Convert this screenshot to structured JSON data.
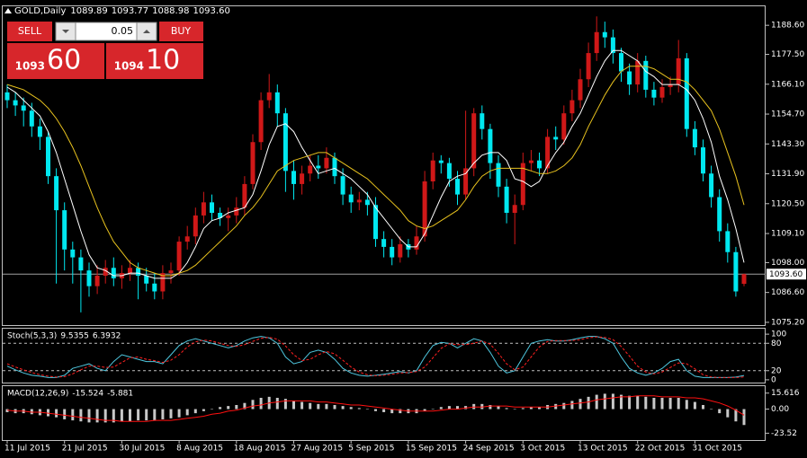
{
  "trade_panel": {
    "sell": "SELL",
    "buy": "BUY",
    "lot": "0.05",
    "sell_big": "1093",
    "sell_small": "60",
    "buy_big": "1094",
    "buy_small": "10"
  },
  "chart_data": [
    {
      "type": "candlestick",
      "title": "GOLD,Daily",
      "header_labels": [
        "1089.89",
        "1093.77",
        "1088.98",
        "1093.60"
      ],
      "categories": [
        "11 Jul 2015",
        null,
        null,
        null,
        null,
        null,
        null,
        "21 Jul 2015",
        null,
        null,
        null,
        null,
        null,
        null,
        "30 Jul 2015",
        null,
        null,
        null,
        null,
        null,
        null,
        "8 Aug 2015",
        null,
        null,
        null,
        null,
        null,
        null,
        "18 Aug 2015",
        null,
        null,
        null,
        null,
        null,
        null,
        "27 Aug 2015",
        null,
        null,
        null,
        null,
        null,
        null,
        "5 Sep 2015",
        null,
        null,
        null,
        null,
        null,
        null,
        "15 Sep 2015",
        null,
        null,
        null,
        null,
        null,
        null,
        "24 Sep 2015",
        null,
        null,
        null,
        null,
        null,
        null,
        "3 Oct 2015",
        null,
        null,
        null,
        null,
        null,
        null,
        "13 Oct 2015",
        null,
        null,
        null,
        null,
        null,
        null,
        "22 Oct 2015",
        null,
        null,
        null,
        null,
        null,
        null,
        "31 Oct 2015",
        null,
        null,
        null,
        null,
        null,
        null
      ],
      "open": [
        1163,
        1160,
        1158,
        1156,
        1150,
        1146,
        1131,
        1118,
        1103,
        1100,
        1095,
        1089,
        1093,
        1096,
        1092,
        1094,
        1096,
        1093,
        1090,
        1087,
        1094,
        1095,
        1106,
        1108,
        1116,
        1121,
        1117,
        1115,
        1116,
        1119,
        1128,
        1144,
        1160,
        1163,
        1155,
        1133,
        1128,
        1132,
        1135,
        1134,
        1138,
        1131,
        1124,
        1121,
        1122,
        1120,
        1107,
        1104,
        1100,
        1105,
        1103,
        1108,
        1129,
        1137,
        1136,
        1130,
        1124,
        1134,
        1155,
        1149,
        1136,
        1127,
        1117,
        1120,
        1136,
        1137,
        1134,
        1146,
        1145,
        1155,
        1160,
        1168,
        1178,
        1186,
        1184,
        1178,
        1171,
        1166,
        1175,
        1164,
        1161,
        1165,
        1166,
        1176,
        1149,
        1142,
        1132,
        1123,
        1110,
        1102,
        1089.89
      ],
      "high": [
        1166,
        1163,
        1161,
        1159,
        1153,
        1148,
        1134,
        1121,
        1106,
        1103,
        1098,
        1097,
        1099,
        1100,
        1097,
        1099,
        1098,
        1096,
        1094,
        1097,
        1098,
        1108,
        1112,
        1119,
        1125,
        1124,
        1119,
        1119,
        1123,
        1131,
        1147,
        1163,
        1170,
        1166,
        1157,
        1137,
        1135,
        1139,
        1139,
        1142,
        1140,
        1134,
        1127,
        1125,
        1125,
        1123,
        1110,
        1107,
        1108,
        1107,
        1112,
        1133,
        1140,
        1139,
        1138,
        1133,
        1156,
        1157,
        1158,
        1151,
        1139,
        1130,
        1124,
        1140,
        1141,
        1140,
        1149,
        1150,
        1158,
        1164,
        1172,
        1182,
        1192,
        1190,
        1187,
        1180,
        1174,
        1178,
        1177,
        1167,
        1168,
        1169,
        1183,
        1178,
        1152,
        1145,
        1135,
        1126,
        1113,
        1104,
        1093.77
      ],
      "low": [
        1157,
        1154,
        1150,
        1146,
        1141,
        1128,
        1090,
        1095,
        1090,
        1079,
        1085,
        1086,
        1090,
        1089,
        1088,
        1091,
        1084,
        1087,
        1084,
        1084,
        1090,
        1093,
        1103,
        1105,
        1113,
        1114,
        1112,
        1110,
        1113,
        1116,
        1126,
        1141,
        1157,
        1150,
        1125,
        1122,
        1124,
        1129,
        1130,
        1132,
        1128,
        1120,
        1117,
        1118,
        1116,
        1104,
        1100,
        1097,
        1098,
        1100,
        1101,
        1106,
        1126,
        1132,
        1127,
        1120,
        1122,
        1131,
        1145,
        1130,
        1123,
        1113,
        1105,
        1118,
        1133,
        1131,
        1132,
        1141,
        1143,
        1152,
        1157,
        1165,
        1175,
        1180,
        1174,
        1167,
        1162,
        1163,
        1161,
        1158,
        1159,
        1162,
        1163,
        1146,
        1139,
        1129,
        1119,
        1106,
        1098,
        1085,
        1088.98
      ],
      "close": [
        1160,
        1158,
        1156,
        1150,
        1146,
        1131,
        1118,
        1103,
        1100,
        1095,
        1089,
        1093,
        1096,
        1092,
        1094,
        1096,
        1093,
        1090,
        1087,
        1094,
        1095,
        1106,
        1108,
        1116,
        1121,
        1117,
        1115,
        1116,
        1119,
        1128,
        1144,
        1160,
        1163,
        1155,
        1133,
        1128,
        1132,
        1135,
        1134,
        1138,
        1131,
        1124,
        1121,
        1122,
        1120,
        1107,
        1104,
        1100,
        1105,
        1103,
        1108,
        1129,
        1137,
        1136,
        1130,
        1124,
        1134,
        1155,
        1149,
        1136,
        1127,
        1117,
        1120,
        1136,
        1137,
        1134,
        1146,
        1145,
        1155,
        1160,
        1168,
        1178,
        1186,
        1184,
        1178,
        1171,
        1166,
        1175,
        1164,
        1161,
        1165,
        1166,
        1176,
        1149,
        1142,
        1132,
        1123,
        1110,
        1102,
        1087,
        1093.6
      ],
      "up_color": "#d01818",
      "down_color": "#00e8f0",
      "series": [
        {
          "color": "#ffffff",
          "values": [
            1165,
            1163,
            1160,
            1157,
            1154,
            1148,
            1140,
            1130,
            1120,
            1110,
            1101,
            1096,
            1095,
            1093,
            1093,
            1094,
            1094,
            1093,
            1092,
            1092,
            1092,
            1094,
            1098,
            1104,
            1111,
            1114,
            1115,
            1117,
            1118,
            1119,
            1124,
            1133,
            1143,
            1150,
            1151,
            1148,
            1142,
            1137,
            1132,
            1133,
            1134,
            1132,
            1130,
            1127,
            1124,
            1119,
            1115,
            1111,
            1107,
            1104,
            1104,
            1109,
            1116,
            1123,
            1129,
            1131,
            1132,
            1136,
            1139,
            1140,
            1140,
            1137,
            1130,
            1129,
            1127,
            1129,
            1135,
            1140,
            1144,
            1150,
            1155,
            1162,
            1169,
            1175,
            1179,
            1179,
            1177,
            1175,
            1171,
            1169,
            1166,
            1166,
            1166,
            1164,
            1160,
            1153,
            1144,
            1131,
            1122,
            1111,
            1098
          ]
        },
        {
          "color": "#e8c21e",
          "values": [
            1166,
            1165,
            1164,
            1162,
            1160,
            1157,
            1153,
            1148,
            1142,
            1135,
            1127,
            1119,
            1112,
            1106,
            1102,
            1098,
            1096,
            1095,
            1094,
            1093,
            1093,
            1094,
            1095,
            1097,
            1100,
            1103,
            1106,
            1109,
            1112,
            1116,
            1119,
            1123,
            1128,
            1133,
            1135,
            1137,
            1138,
            1139,
            1140,
            1140,
            1138,
            1136,
            1134,
            1132,
            1130,
            1127,
            1124,
            1121,
            1118,
            1114,
            1112,
            1111,
            1112,
            1114,
            1116,
            1118,
            1122,
            1127,
            1131,
            1133,
            1134,
            1134,
            1134,
            1134,
            1133,
            1132,
            1132,
            1133,
            1135,
            1138,
            1143,
            1150,
            1156,
            1162,
            1167,
            1171,
            1173,
            1173,
            1173,
            1172,
            1170,
            1168,
            1168,
            1167,
            1164,
            1160,
            1156,
            1149,
            1140,
            1131,
            1120
          ]
        }
      ],
      "last_price": {
        "value": 1093.6,
        "label": "1093.60"
      },
      "ylim": [
        1073.8,
        1196.2
      ],
      "yticks": [
        {
          "value": 1188.6,
          "label": "1188.60"
        },
        {
          "value": 1177.5,
          "label": "1177.50"
        },
        {
          "value": 1166.1,
          "label": "1166.10"
        },
        {
          "value": 1154.7,
          "label": "1154.70"
        },
        {
          "value": 1143.3,
          "label": "1143.30"
        },
        {
          "value": 1131.9,
          "label": "1131.90"
        },
        {
          "value": 1120.5,
          "label": "1120.50"
        },
        {
          "value": 1109.1,
          "label": "1109.10"
        },
        {
          "value": 1098,
          "label": "1098.00"
        },
        {
          "value": 1086.6,
          "label": "1086.60"
        },
        {
          "value": 1075.2,
          "label": "1075.20"
        }
      ]
    },
    {
      "type": "line",
      "title": "Stoch(5,3,3)",
      "series": [
        {
          "color": "#4fc8e0",
          "style": "solid",
          "values": [
            30,
            22,
            15,
            10,
            8,
            5,
            5,
            10,
            25,
            30,
            35,
            25,
            20,
            40,
            55,
            50,
            45,
            40,
            40,
            35,
            55,
            75,
            85,
            90,
            85,
            80,
            75,
            70,
            75,
            85,
            92,
            95,
            92,
            80,
            50,
            35,
            40,
            60,
            65,
            60,
            45,
            25,
            15,
            10,
            8,
            10,
            12,
            15,
            18,
            15,
            20,
            50,
            75,
            82,
            80,
            70,
            80,
            90,
            85,
            60,
            30,
            15,
            20,
            50,
            80,
            85,
            88,
            85,
            85,
            88,
            92,
            95,
            95,
            90,
            80,
            50,
            25,
            15,
            10,
            15,
            25,
            40,
            45,
            20,
            8,
            5,
            5,
            5,
            5,
            6,
            9.5355
          ]
        },
        {
          "color": "#ff2020",
          "style": "dashed",
          "values": [
            35,
            28,
            22,
            16,
            11,
            8,
            6,
            7,
            13,
            22,
            30,
            30,
            27,
            28,
            38,
            48,
            50,
            45,
            42,
            38,
            43,
            55,
            72,
            83,
            87,
            85,
            80,
            75,
            73,
            77,
            84,
            91,
            93,
            89,
            74,
            55,
            42,
            45,
            55,
            62,
            57,
            43,
            28,
            17,
            11,
            9,
            10,
            12,
            15,
            16,
            18,
            28,
            48,
            69,
            79,
            77,
            77,
            80,
            85,
            78,
            58,
            35,
            22,
            28,
            50,
            72,
            84,
            86,
            86,
            86,
            88,
            92,
            94,
            93,
            88,
            73,
            52,
            30,
            17,
            13,
            17,
            27,
            37,
            35,
            24,
            11,
            6,
            5,
            5,
            5,
            6.3932
          ]
        }
      ],
      "levels": [
        80,
        20
      ],
      "ylim": [
        -8,
        112
      ],
      "yticks": [
        100,
        80,
        20,
        0
      ]
    },
    {
      "type": "bar",
      "title": "MACD(12,26,9)",
      "color": "#c8c8c8",
      "values": [
        -3,
        -4,
        -4,
        -5,
        -6,
        -7,
        -8,
        -10,
        -11,
        -12,
        -13,
        -13,
        -13,
        -13,
        -12,
        -12,
        -11,
        -11,
        -11,
        -10,
        -9,
        -8,
        -6,
        -4,
        -2,
        0,
        2,
        3,
        4,
        6,
        9,
        11,
        12,
        11,
        10,
        8,
        7,
        6,
        5,
        5,
        4,
        3,
        2,
        1,
        0,
        -2,
        -3,
        -4,
        -4,
        -4,
        -4,
        -2,
        0,
        2,
        3,
        3,
        3,
        5,
        5,
        4,
        3,
        1,
        0,
        1,
        2,
        2,
        4,
        5,
        6,
        8,
        10,
        12,
        14,
        15,
        15,
        14,
        13,
        13,
        12,
        11,
        11,
        11,
        11,
        9,
        7,
        4,
        0,
        -4,
        -8,
        -12,
        -15.524
      ],
      "series": [
        {
          "color": "#ff1010",
          "style": "solid",
          "values": [
            -1,
            -2,
            -2,
            -3,
            -3,
            -4,
            -5,
            -6,
            -7,
            -8,
            -9,
            -10,
            -11,
            -11,
            -12,
            -12,
            -12,
            -12,
            -11,
            -11,
            -11,
            -10,
            -9,
            -8,
            -7,
            -5,
            -4,
            -2,
            -1,
            1,
            3,
            4,
            6,
            7,
            8,
            8,
            8,
            8,
            7,
            7,
            6,
            5,
            4,
            4,
            3,
            2,
            1,
            0,
            -1,
            -2,
            -2,
            -2,
            -2,
            -1,
            0,
            0,
            1,
            2,
            2,
            3,
            3,
            3,
            2,
            2,
            2,
            2,
            2,
            3,
            4,
            5,
            6,
            7,
            9,
            10,
            11,
            12,
            12,
            13,
            13,
            13,
            12,
            12,
            12,
            11,
            11,
            10,
            8,
            6,
            3,
            -1,
            -5.881
          ]
        }
      ],
      "ylim": [
        -30.2,
        22.4
      ],
      "yticks": [
        15.616,
        {
          "value": 0,
          "label": "0.00"
        },
        -23.52
      ]
    }
  ]
}
